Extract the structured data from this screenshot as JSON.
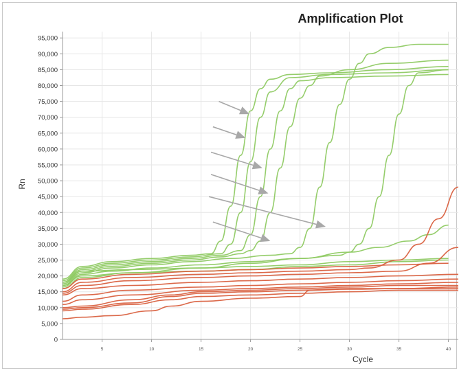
{
  "chart_data": {
    "type": "line",
    "title": "Amplification Plot",
    "xlabel": "Cycle",
    "ylabel": "Rn",
    "xlim": [
      1,
      41
    ],
    "ylim": [
      0,
      97000
    ],
    "grid": true,
    "legend": "none",
    "x_ticks": [
      5,
      10,
      15,
      20,
      25,
      30,
      35,
      40
    ],
    "x_tick_labels": [
      "5",
      "10",
      "15",
      "20",
      "25",
      "30",
      "35",
      "40"
    ],
    "y_ticks": [
      0,
      5000,
      10000,
      15000,
      20000,
      25000,
      30000,
      35000,
      40000,
      45000,
      50000,
      55000,
      60000,
      65000,
      70000,
      75000,
      80000,
      85000,
      90000,
      95000
    ],
    "y_tick_labels": [
      "0",
      "5,000",
      "10,000",
      "15,000",
      "20,000",
      "25,000",
      "30,000",
      "35,000",
      "40,000",
      "45,000",
      "50,000",
      "55,000",
      "60,000",
      "65,000",
      "70,000",
      "75,000",
      "80,000",
      "85,000",
      "90,000",
      "95,000"
    ],
    "colors": {
      "amplified": "#8fca63",
      "unamplified": "#d9603f",
      "arrow": "#a8a8a8",
      "grid": "#e6e6e6"
    },
    "series": [
      {
        "group": "amplified",
        "values": [
          [
            1,
            19000
          ],
          [
            3,
            23000
          ],
          [
            6,
            24500
          ],
          [
            10,
            25500
          ],
          [
            14,
            26500
          ],
          [
            16,
            27000
          ],
          [
            17,
            31000
          ],
          [
            18,
            42000
          ],
          [
            19,
            58000
          ],
          [
            20,
            72000
          ],
          [
            21,
            79000
          ],
          [
            22,
            82000
          ],
          [
            24,
            83500
          ],
          [
            28,
            84000
          ],
          [
            34,
            85000
          ],
          [
            40,
            86000
          ]
        ]
      },
      {
        "group": "amplified",
        "values": [
          [
            1,
            18500
          ],
          [
            3,
            22500
          ],
          [
            6,
            24000
          ],
          [
            10,
            25000
          ],
          [
            14,
            26000
          ],
          [
            17,
            27000
          ],
          [
            18,
            30000
          ],
          [
            19,
            40000
          ],
          [
            20,
            56000
          ],
          [
            21,
            70000
          ],
          [
            22,
            78000
          ],
          [
            24,
            82500
          ],
          [
            28,
            83500
          ],
          [
            34,
            84000
          ],
          [
            40,
            85000
          ]
        ]
      },
      {
        "group": "amplified",
        "values": [
          [
            1,
            18000
          ],
          [
            3,
            22000
          ],
          [
            6,
            23500
          ],
          [
            10,
            24500
          ],
          [
            14,
            25500
          ],
          [
            17,
            26500
          ],
          [
            19,
            28000
          ],
          [
            20,
            33000
          ],
          [
            21,
            45000
          ],
          [
            22,
            60000
          ],
          [
            23,
            72000
          ],
          [
            24,
            79000
          ],
          [
            25,
            81500
          ],
          [
            28,
            82500
          ],
          [
            34,
            83000
          ],
          [
            40,
            83500
          ]
        ]
      },
      {
        "group": "amplified",
        "values": [
          [
            1,
            17500
          ],
          [
            3,
            21500
          ],
          [
            6,
            23000
          ],
          [
            10,
            24000
          ],
          [
            14,
            25000
          ],
          [
            17,
            26000
          ],
          [
            19,
            27000
          ],
          [
            20,
            28000
          ],
          [
            21,
            31000
          ],
          [
            22,
            40000
          ],
          [
            23,
            54000
          ],
          [
            24,
            67000
          ],
          [
            25,
            76000
          ],
          [
            26,
            80000
          ],
          [
            27,
            83000
          ],
          [
            30,
            85000
          ],
          [
            34,
            87000
          ],
          [
            40,
            88000
          ]
        ]
      },
      {
        "group": "amplified",
        "values": [
          [
            1,
            17000
          ],
          [
            3,
            21000
          ],
          [
            6,
            22500
          ],
          [
            10,
            23500
          ],
          [
            14,
            24500
          ],
          [
            18,
            25500
          ],
          [
            22,
            26500
          ],
          [
            24,
            27000
          ],
          [
            25,
            29000
          ],
          [
            26,
            35000
          ],
          [
            27,
            48000
          ],
          [
            28,
            62000
          ],
          [
            29,
            74000
          ],
          [
            30,
            82000
          ],
          [
            31,
            87000
          ],
          [
            32,
            90000
          ],
          [
            34,
            92000
          ],
          [
            37,
            93000
          ],
          [
            40,
            93000
          ]
        ]
      },
      {
        "group": "amplified",
        "values": [
          [
            1,
            16500
          ],
          [
            3,
            20500
          ],
          [
            6,
            21500
          ],
          [
            10,
            22500
          ],
          [
            15,
            23500
          ],
          [
            20,
            24500
          ],
          [
            25,
            25500
          ],
          [
            29,
            26500
          ],
          [
            30,
            27500
          ],
          [
            31,
            30000
          ],
          [
            32,
            35000
          ],
          [
            33,
            45000
          ],
          [
            34,
            58000
          ],
          [
            35,
            71000
          ],
          [
            36,
            80000
          ],
          [
            37,
            84000
          ],
          [
            40,
            85000
          ]
        ]
      },
      {
        "group": "amplified",
        "values": [
          [
            1,
            16000
          ],
          [
            3,
            19500
          ],
          [
            8,
            21000
          ],
          [
            15,
            22500
          ],
          [
            20,
            24000
          ],
          [
            25,
            25500
          ],
          [
            30,
            27500
          ],
          [
            33,
            29000
          ],
          [
            36,
            31000
          ],
          [
            38,
            33000
          ],
          [
            40,
            36000
          ]
        ]
      },
      {
        "group": "amplified",
        "values": [
          [
            1,
            18000
          ],
          [
            3,
            21500
          ],
          [
            8,
            22000
          ],
          [
            15,
            22500
          ],
          [
            20,
            23000
          ],
          [
            25,
            23500
          ],
          [
            30,
            24500
          ],
          [
            35,
            25000
          ],
          [
            40,
            25500
          ]
        ]
      },
      {
        "group": "amplified",
        "values": [
          [
            1,
            17000
          ],
          [
            3,
            20000
          ],
          [
            8,
            21000
          ],
          [
            15,
            21500
          ],
          [
            20,
            22000
          ],
          [
            25,
            23000
          ],
          [
            30,
            23500
          ],
          [
            35,
            24500
          ],
          [
            40,
            25000
          ]
        ]
      },
      {
        "group": "unamplified",
        "values": [
          [
            1,
            16000
          ],
          [
            3,
            19000
          ],
          [
            8,
            20500
          ],
          [
            15,
            21500
          ],
          [
            20,
            22000
          ],
          [
            25,
            22500
          ],
          [
            30,
            23000
          ],
          [
            35,
            23500
          ],
          [
            40,
            24000
          ]
        ]
      },
      {
        "group": "unamplified",
        "values": [
          [
            1,
            15000
          ],
          [
            3,
            18000
          ],
          [
            8,
            19500
          ],
          [
            15,
            20500
          ],
          [
            20,
            21000
          ],
          [
            25,
            21500
          ],
          [
            30,
            22000
          ],
          [
            32,
            22500
          ],
          [
            35,
            25000
          ],
          [
            37,
            30000
          ],
          [
            39,
            38000
          ],
          [
            41,
            48000
          ]
        ]
      },
      {
        "group": "unamplified",
        "values": [
          [
            1,
            14500
          ],
          [
            3,
            17000
          ],
          [
            8,
            18500
          ],
          [
            15,
            19500
          ],
          [
            20,
            20000
          ],
          [
            25,
            20500
          ],
          [
            30,
            21000
          ],
          [
            35,
            21500
          ],
          [
            38,
            24000
          ],
          [
            41,
            29000
          ]
        ]
      },
      {
        "group": "unamplified",
        "values": [
          [
            1,
            14000
          ],
          [
            3,
            16000
          ],
          [
            8,
            17000
          ],
          [
            15,
            18000
          ],
          [
            20,
            18500
          ],
          [
            25,
            19000
          ],
          [
            30,
            19500
          ],
          [
            35,
            20000
          ],
          [
            41,
            20500
          ]
        ]
      },
      {
        "group": "unamplified",
        "values": [
          [
            1,
            12000
          ],
          [
            3,
            14000
          ],
          [
            8,
            15500
          ],
          [
            15,
            16500
          ],
          [
            20,
            17000
          ],
          [
            25,
            17500
          ],
          [
            30,
            18000
          ],
          [
            35,
            18500
          ],
          [
            41,
            19000
          ]
        ]
      },
      {
        "group": "unamplified",
        "values": [
          [
            1,
            11000
          ],
          [
            3,
            12500
          ],
          [
            8,
            14000
          ],
          [
            15,
            15500
          ],
          [
            20,
            16000
          ],
          [
            25,
            16500
          ],
          [
            30,
            17000
          ],
          [
            35,
            17500
          ],
          [
            41,
            18000
          ]
        ]
      },
      {
        "group": "unamplified",
        "values": [
          [
            1,
            10000
          ],
          [
            3,
            10500
          ],
          [
            8,
            12500
          ],
          [
            12,
            14000
          ],
          [
            15,
            15000
          ],
          [
            20,
            15500
          ],
          [
            25,
            16000
          ],
          [
            30,
            16500
          ],
          [
            35,
            17000
          ],
          [
            41,
            17000
          ]
        ]
      },
      {
        "group": "unamplified",
        "values": [
          [
            1,
            9500
          ],
          [
            3,
            10000
          ],
          [
            8,
            11500
          ],
          [
            12,
            13500
          ],
          [
            15,
            14500
          ],
          [
            20,
            15000
          ],
          [
            25,
            15500
          ],
          [
            30,
            16000
          ],
          [
            35,
            16000
          ],
          [
            41,
            16500
          ]
        ]
      },
      {
        "group": "unamplified",
        "values": [
          [
            1,
            9000
          ],
          [
            3,
            9500
          ],
          [
            8,
            11000
          ],
          [
            12,
            12500
          ],
          [
            15,
            13500
          ],
          [
            20,
            14000
          ],
          [
            25,
            14500
          ],
          [
            30,
            15000
          ],
          [
            35,
            15500
          ],
          [
            41,
            15500
          ]
        ]
      },
      {
        "group": "unamplified",
        "values": [
          [
            1,
            6500
          ],
          [
            3,
            7000
          ],
          [
            6,
            7500
          ],
          [
            10,
            9000
          ],
          [
            12,
            10500
          ],
          [
            15,
            12000
          ],
          [
            20,
            13000
          ],
          [
            25,
            13500
          ],
          [
            26,
            15500
          ],
          [
            30,
            15800
          ],
          [
            35,
            16000
          ],
          [
            41,
            16000
          ]
        ]
      }
    ],
    "annotations": [
      {
        "type": "arrow",
        "from": [
          16.8,
          75000
        ],
        "to": [
          19.9,
          71000
        ]
      },
      {
        "type": "arrow",
        "from": [
          16.2,
          67000
        ],
        "to": [
          19.5,
          63500
        ]
      },
      {
        "type": "arrow",
        "from": [
          16.0,
          59000
        ],
        "to": [
          21.2,
          54000
        ]
      },
      {
        "type": "arrow",
        "from": [
          16.0,
          52000
        ],
        "to": [
          21.8,
          46000
        ]
      },
      {
        "type": "arrow",
        "from": [
          15.8,
          45000
        ],
        "to": [
          27.6,
          35500
        ]
      },
      {
        "type": "arrow",
        "from": [
          16.2,
          37000
        ],
        "to": [
          22.0,
          31000
        ]
      }
    ]
  }
}
